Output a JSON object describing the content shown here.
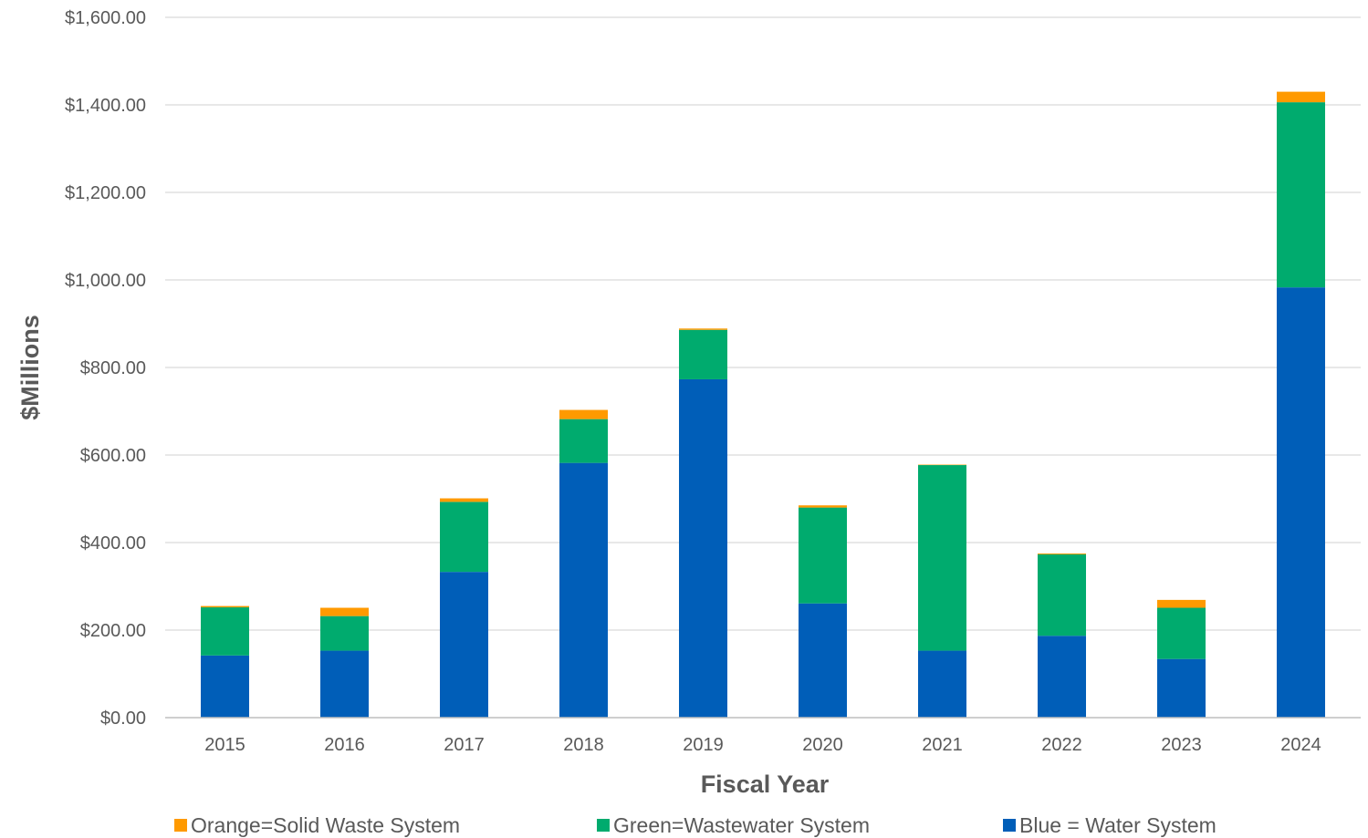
{
  "chart_data": {
    "type": "bar",
    "stacked": true,
    "title": "",
    "xlabel": "Fiscal Year",
    "ylabel": "$Millions",
    "ylim": [
      0,
      1600
    ],
    "y_ticks": [
      "$0.00",
      "$200.00",
      "$400.00",
      "$600.00",
      "$800.00",
      "$1,000.00",
      "$1,200.00",
      "$1,400.00",
      "$1,600.00"
    ],
    "y_tick_values": [
      0,
      200,
      400,
      600,
      800,
      1000,
      1200,
      1400,
      1600
    ],
    "grid": true,
    "legend_position": "bottom",
    "categories": [
      "2015",
      "2016",
      "2017",
      "2018",
      "2019",
      "2020",
      "2021",
      "2022",
      "2023",
      "2024"
    ],
    "series": [
      {
        "name": "Blue = Water System",
        "color": "#005eb8",
        "values": [
          142,
          153,
          333,
          582,
          773,
          261,
          153,
          187,
          134,
          983
        ]
      },
      {
        "name": "Green=Wastewater System",
        "color": "#00ab6e",
        "values": [
          110,
          79,
          160,
          100,
          113,
          219,
          424,
          186,
          117,
          423
        ]
      },
      {
        "name": "Orange=Solid Waste System",
        "color": "#ff9a00",
        "values": [
          3,
          19,
          8,
          21,
          3,
          5,
          1,
          2,
          18,
          24
        ]
      }
    ],
    "legend_order": [
      "Orange=Solid Waste System",
      "Green=Wastewater System",
      "Blue = Water System"
    ]
  }
}
